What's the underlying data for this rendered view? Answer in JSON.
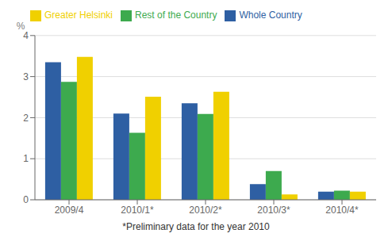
{
  "chart_data": {
    "type": "bar",
    "categories": [
      "2009/4",
      "2010/1*",
      "2010/2*",
      "2010/3*",
      "2010/4*"
    ],
    "series": [
      {
        "name": "Whole Country",
        "color": "#2E5FA3",
        "values": [
          3.35,
          2.1,
          2.35,
          0.38,
          0.2
        ]
      },
      {
        "name": "Rest of the Country",
        "color": "#3DAA4E",
        "values": [
          2.87,
          1.63,
          2.09,
          0.7,
          0.22
        ]
      },
      {
        "name": "Greater Helsinki",
        "color": "#F0D000",
        "values": [
          3.48,
          2.51,
          2.63,
          0.13,
          0.2
        ]
      }
    ],
    "ylabel": "%",
    "ylim": [
      0,
      4
    ],
    "yticks": [
      0,
      1,
      2,
      3,
      4
    ],
    "grid": true,
    "legend": "upper left",
    "annotations": [
      "*Preliminary data for the year 2010"
    ]
  }
}
